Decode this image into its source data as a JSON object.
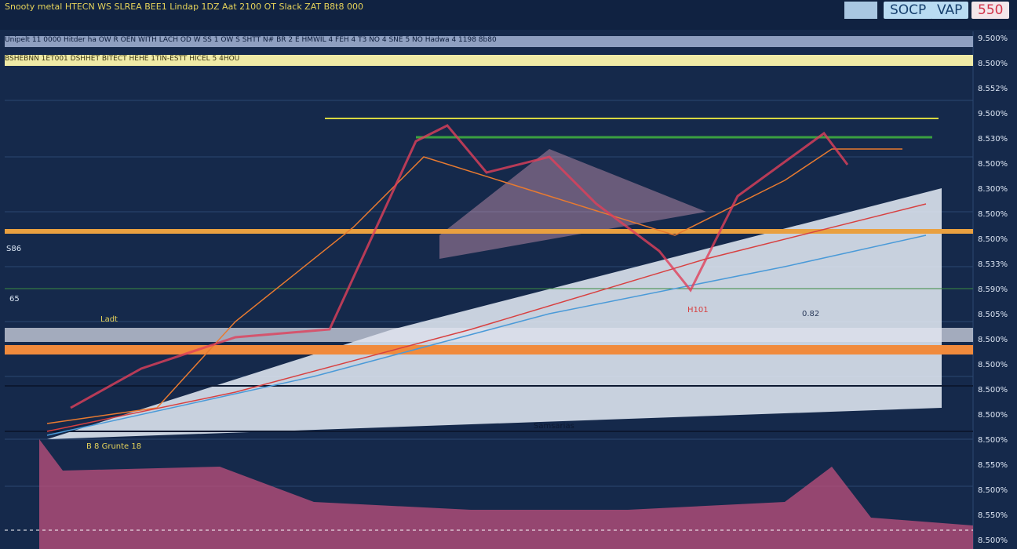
{
  "toolbar": {
    "buttons": [
      "SOCP",
      "VAP",
      "550"
    ]
  },
  "header": {
    "title": "Snooty metal HTECN WS SLREA BEE1 Lindap 1DZ Aat 2100 OT Slack ZAT B8t8 000"
  },
  "info_rows": [
    "Unipelt 11 0000 Hitder ha OW R OEN WITH LACH OD W SS 1 OW S SHTT N# BR 2 E HMWIL 4 FEH 4 T3 NO 4 SNE 5 NO Hadwa 4 1198 8b80",
    "BSHEBNN 1ET001 DSHHET BITECT HEHE 1TIN-ESTT HICEL 5 4HOU"
  ],
  "annotations": [
    "S86",
    "65",
    "Ladt",
    "H101",
    "0.82",
    "Samsarias",
    "B 8 Grunte 18"
  ],
  "price_axis": [
    "9.500%",
    "8.500%",
    "8.552%",
    "9.500%",
    "8.530%",
    "8.500%",
    "8.300%",
    "8.500%",
    "8.500%",
    "8.533%",
    "8.590%",
    "8.505%",
    "8.500%",
    "8.500%",
    "8.500%",
    "8.500%",
    "8.500%",
    "8.550%",
    "8.500%",
    "8.550%",
    "8.500%"
  ]
}
